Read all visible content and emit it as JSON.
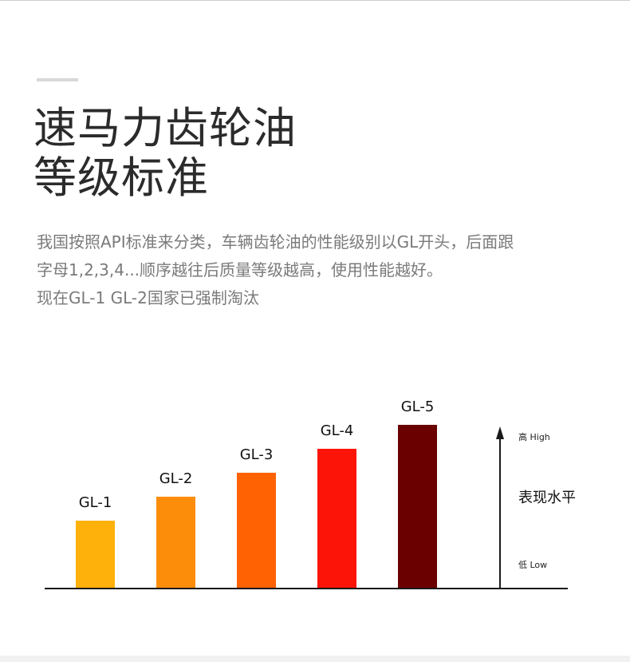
{
  "headline": {
    "line1": "速马力齿轮油",
    "line2": "等级标准"
  },
  "description": {
    "line1": "我国按照API标准来分类，车辆齿轮油的性能级别以GL开头，后面跟",
    "line2": "字母1,2,3,4...顺序越往后质量等级越高，使用性能越好。",
    "line3": "现在GL-1 GL-2国家已强制淘汰"
  },
  "chart_data": {
    "type": "bar",
    "categories": [
      "GL-1",
      "GL-2",
      "GL-3",
      "GL-4",
      "GL-5"
    ],
    "values": [
      1,
      2,
      3,
      4,
      5
    ],
    "colors": [
      "#fdb10a",
      "#fc8d0a",
      "#ff6203",
      "#fb1407",
      "#6a0000"
    ],
    "title": "",
    "xlabel": "",
    "ylabel": "表现水平",
    "ylabel_high": "高 High",
    "ylabel_low": "低 Low",
    "grid": false,
    "legend": "none"
  }
}
